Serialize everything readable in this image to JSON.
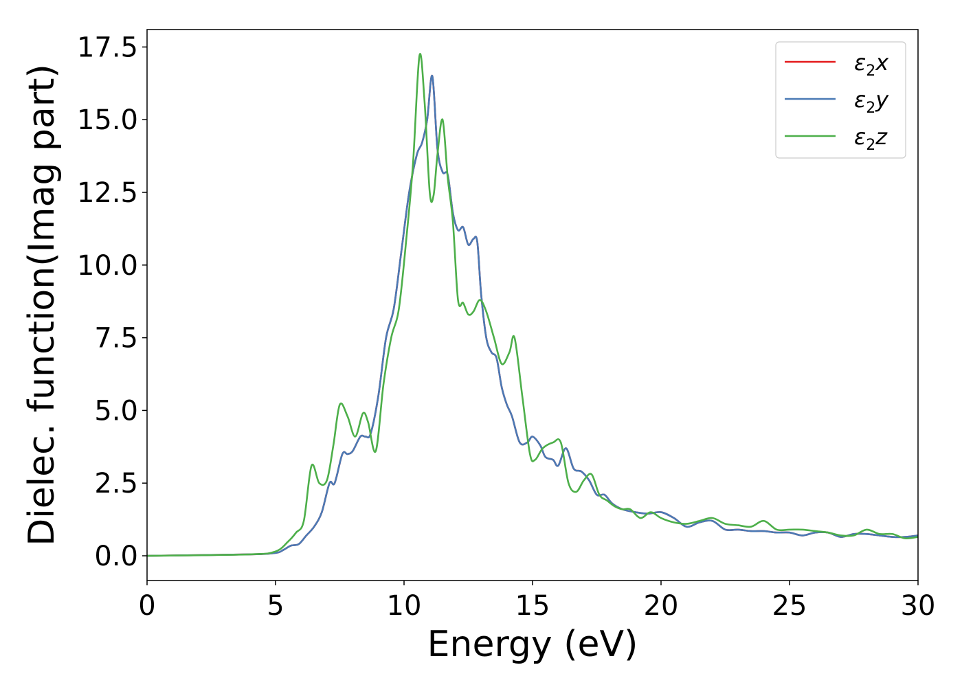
{
  "chart_data": {
    "type": "line",
    "xlabel": "Energy (eV)",
    "ylabel": "Dielec. function(Imag part)",
    "xlim": [
      0,
      30
    ],
    "ylim": [
      -0.85,
      18.1
    ],
    "x_ticks": [
      0,
      5,
      10,
      15,
      20,
      25,
      30
    ],
    "x_tick_labels": [
      "0",
      "5",
      "10",
      "15",
      "20",
      "25",
      "30"
    ],
    "y_ticks": [
      0.0,
      2.5,
      5.0,
      7.5,
      10.0,
      12.5,
      15.0,
      17.5
    ],
    "y_tick_labels": [
      "0.0",
      "2.5",
      "5.0",
      "7.5",
      "10.0",
      "12.5",
      "15.0",
      "17.5"
    ],
    "grid": false,
    "legend_position": "top-right",
    "series": [
      {
        "name": "ε2x",
        "legend_base": "ε",
        "legend_sub": "2",
        "legend_tail": "x",
        "color": "#e41a1c",
        "x": [
          0,
          4.0,
          5.0,
          5.3,
          5.6,
          5.9,
          6.2,
          6.5,
          6.8,
          7.1,
          7.3,
          7.6,
          7.8,
          8.0,
          8.3,
          8.5,
          8.7,
          9.0,
          9.3,
          9.6,
          9.9,
          10.2,
          10.5,
          10.7,
          10.9,
          11.1,
          11.3,
          11.5,
          11.7,
          11.9,
          12.1,
          12.3,
          12.5,
          12.7,
          12.85,
          13.0,
          13.2,
          13.4,
          13.6,
          13.8,
          14.0,
          14.2,
          14.5,
          14.8,
          15.0,
          15.3,
          15.5,
          15.8,
          16.0,
          16.3,
          16.6,
          16.9,
          17.2,
          17.5,
          17.8,
          18.1,
          18.5,
          19.0,
          19.5,
          20.0,
          20.5,
          21.0,
          21.5,
          22.0,
          22.5,
          23.0,
          23.5,
          24.0,
          24.5,
          25.0,
          25.5,
          26.0,
          26.5,
          27.0,
          27.5,
          28.0,
          28.5,
          29.0,
          29.5,
          30.0
        ],
        "values": [
          0.0,
          0.05,
          0.1,
          0.2,
          0.35,
          0.4,
          0.7,
          1.0,
          1.5,
          2.5,
          2.5,
          3.5,
          3.5,
          3.6,
          4.1,
          4.1,
          4.2,
          5.5,
          7.5,
          8.5,
          10.5,
          12.5,
          13.8,
          14.2,
          15.0,
          16.5,
          14.0,
          13.2,
          13.1,
          11.8,
          11.2,
          11.3,
          10.7,
          10.9,
          10.8,
          9.0,
          7.5,
          7.0,
          6.8,
          5.8,
          5.2,
          4.8,
          3.9,
          3.9,
          4.1,
          3.8,
          3.4,
          3.3,
          3.1,
          3.7,
          3.0,
          2.9,
          2.6,
          2.1,
          2.1,
          1.8,
          1.6,
          1.5,
          1.45,
          1.5,
          1.3,
          1.0,
          1.15,
          1.2,
          0.9,
          0.9,
          0.85,
          0.85,
          0.8,
          0.8,
          0.7,
          0.8,
          0.8,
          0.65,
          0.75,
          0.75,
          0.7,
          0.65,
          0.65,
          0.7
        ]
      },
      {
        "name": "ε2y",
        "legend_base": "ε",
        "legend_sub": "2",
        "legend_tail": "y",
        "color": "#4a7ab5",
        "x": [
          0,
          4.0,
          5.0,
          5.3,
          5.6,
          5.9,
          6.2,
          6.5,
          6.8,
          7.1,
          7.3,
          7.6,
          7.8,
          8.0,
          8.3,
          8.5,
          8.7,
          9.0,
          9.3,
          9.6,
          9.9,
          10.2,
          10.5,
          10.7,
          10.9,
          11.1,
          11.3,
          11.5,
          11.7,
          11.9,
          12.1,
          12.3,
          12.5,
          12.7,
          12.85,
          13.0,
          13.2,
          13.4,
          13.6,
          13.8,
          14.0,
          14.2,
          14.5,
          14.8,
          15.0,
          15.3,
          15.5,
          15.8,
          16.0,
          16.3,
          16.6,
          16.9,
          17.2,
          17.5,
          17.8,
          18.1,
          18.5,
          19.0,
          19.5,
          20.0,
          20.5,
          21.0,
          21.5,
          22.0,
          22.5,
          23.0,
          23.5,
          24.0,
          24.5,
          25.0,
          25.5,
          26.0,
          26.5,
          27.0,
          27.5,
          28.0,
          28.5,
          29.0,
          29.5,
          30.0
        ],
        "values": [
          0.0,
          0.05,
          0.1,
          0.2,
          0.35,
          0.4,
          0.7,
          1.0,
          1.5,
          2.5,
          2.5,
          3.5,
          3.5,
          3.6,
          4.1,
          4.1,
          4.2,
          5.5,
          7.5,
          8.5,
          10.5,
          12.5,
          13.8,
          14.2,
          15.0,
          16.5,
          14.0,
          13.2,
          13.1,
          11.8,
          11.2,
          11.3,
          10.7,
          10.9,
          10.8,
          9.0,
          7.5,
          7.0,
          6.8,
          5.8,
          5.2,
          4.8,
          3.9,
          3.9,
          4.1,
          3.8,
          3.4,
          3.3,
          3.1,
          3.7,
          3.0,
          2.9,
          2.6,
          2.1,
          2.1,
          1.8,
          1.6,
          1.5,
          1.45,
          1.5,
          1.3,
          1.0,
          1.15,
          1.2,
          0.9,
          0.9,
          0.85,
          0.85,
          0.8,
          0.8,
          0.7,
          0.8,
          0.8,
          0.65,
          0.75,
          0.75,
          0.7,
          0.65,
          0.65,
          0.7
        ]
      },
      {
        "name": "ε2z",
        "legend_base": "ε",
        "legend_sub": "2",
        "legend_tail": "z",
        "color": "#4daf4a",
        "x": [
          0,
          4.0,
          5.0,
          5.5,
          5.8,
          6.1,
          6.4,
          6.7,
          7.0,
          7.25,
          7.5,
          7.8,
          8.1,
          8.4,
          8.6,
          8.9,
          9.2,
          9.5,
          9.8,
          10.1,
          10.35,
          10.6,
          10.8,
          11.0,
          11.15,
          11.3,
          11.5,
          11.7,
          11.9,
          12.1,
          12.3,
          12.5,
          12.7,
          12.95,
          13.2,
          13.5,
          13.8,
          14.1,
          14.3,
          14.6,
          14.9,
          15.1,
          15.4,
          15.8,
          16.1,
          16.4,
          16.7,
          17.0,
          17.3,
          17.6,
          17.9,
          18.2,
          18.5,
          18.8,
          19.2,
          19.6,
          20.0,
          20.5,
          21.0,
          21.5,
          22.0,
          22.5,
          23.0,
          23.5,
          24.0,
          24.5,
          25.0,
          25.5,
          26.0,
          26.5,
          27.0,
          27.5,
          28.0,
          28.5,
          29.0,
          29.5,
          30.0
        ],
        "values": [
          0.0,
          0.05,
          0.15,
          0.5,
          0.8,
          1.2,
          3.1,
          2.5,
          2.6,
          3.8,
          5.2,
          4.8,
          4.1,
          4.9,
          4.6,
          3.6,
          5.9,
          7.5,
          8.5,
          11.0,
          13.5,
          17.2,
          15.6,
          12.5,
          12.4,
          13.8,
          15.0,
          13.0,
          11.5,
          8.8,
          8.7,
          8.3,
          8.4,
          8.8,
          8.4,
          7.5,
          6.6,
          7.0,
          7.5,
          5.5,
          3.5,
          3.3,
          3.7,
          3.9,
          3.9,
          2.5,
          2.2,
          2.6,
          2.8,
          2.1,
          1.9,
          1.7,
          1.6,
          1.6,
          1.3,
          1.5,
          1.3,
          1.15,
          1.1,
          1.2,
          1.3,
          1.1,
          1.05,
          1.0,
          1.2,
          0.9,
          0.9,
          0.9,
          0.85,
          0.8,
          0.7,
          0.7,
          0.9,
          0.75,
          0.75,
          0.6,
          0.65
        ]
      }
    ]
  }
}
